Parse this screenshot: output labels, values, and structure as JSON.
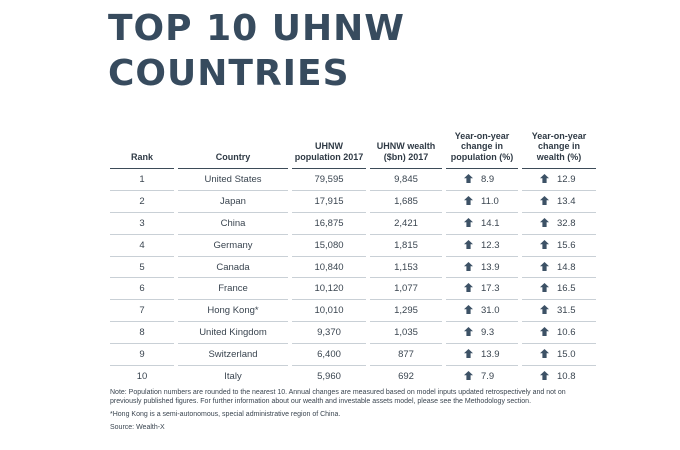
{
  "title": {
    "line1": "TOP 10 UHNW",
    "line2": "COUNTRIES"
  },
  "table": {
    "headers": {
      "rank": "Rank",
      "country": "Country",
      "population": "UHNW population 2017",
      "wealth": "UHNW wealth ($bn) 2017",
      "pop_change": "Year-on-year change in population (%)",
      "wealth_change": "Year-on-year change in wealth (%)"
    },
    "rows": [
      {
        "rank": "1",
        "country": "United States",
        "population": "79,595",
        "wealth": "9,845",
        "pop_change": "8.9",
        "wealth_change": "12.9"
      },
      {
        "rank": "2",
        "country": "Japan",
        "population": "17,915",
        "wealth": "1,685",
        "pop_change": "11.0",
        "wealth_change": "13.4"
      },
      {
        "rank": "3",
        "country": "China",
        "population": "16,875",
        "wealth": "2,421",
        "pop_change": "14.1",
        "wealth_change": "32.8"
      },
      {
        "rank": "4",
        "country": "Germany",
        "population": "15,080",
        "wealth": "1,815",
        "pop_change": "12.3",
        "wealth_change": "15.6"
      },
      {
        "rank": "5",
        "country": "Canada",
        "population": "10,840",
        "wealth": "1,153",
        "pop_change": "13.9",
        "wealth_change": "14.8"
      },
      {
        "rank": "6",
        "country": "France",
        "population": "10,120",
        "wealth": "1,077",
        "pop_change": "17.3",
        "wealth_change": "16.5"
      },
      {
        "rank": "7",
        "country": "Hong Kong*",
        "population": "10,010",
        "wealth": "1,295",
        "pop_change": "31.0",
        "wealth_change": "31.5"
      },
      {
        "rank": "8",
        "country": "United Kingdom",
        "population": "9,370",
        "wealth": "1,035",
        "pop_change": "9.3",
        "wealth_change": "10.6"
      },
      {
        "rank": "9",
        "country": "Switzerland",
        "population": "6,400",
        "wealth": "877",
        "pop_change": "13.9",
        "wealth_change": "15.0"
      },
      {
        "rank": "10",
        "country": "Italy",
        "population": "5,960",
        "wealth": "692",
        "pop_change": "7.9",
        "wealth_change": "10.8"
      }
    ]
  },
  "change_icon": "arrow-up-icon",
  "colors": {
    "title": "#374b5e",
    "arrow": "#3d5266",
    "rule": "#3d4b58"
  },
  "notes": {
    "note": "Note: Population numbers are rounded to the nearest 10. Annual changes are measured based on model inputs updated retrospectively and not on previously published figures. For further information about our wealth and investable assets model, please see the Methodology section.",
    "footnote": "*Hong Kong is a semi-autonomous, special administrative region of China.",
    "source": "Source: Wealth-X"
  }
}
